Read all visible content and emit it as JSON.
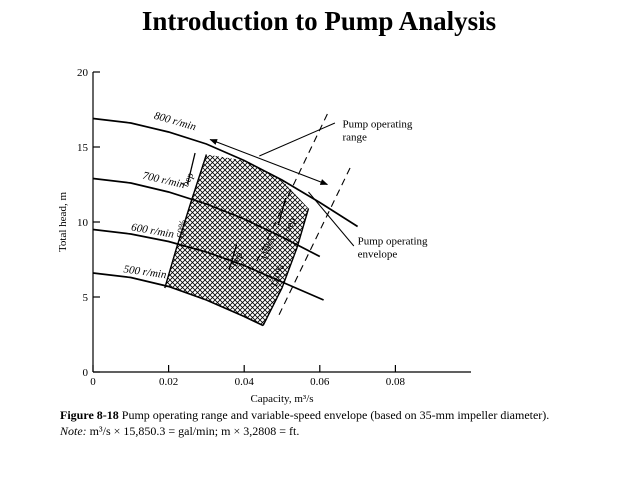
{
  "page": {
    "title": "Introduction to Pump Analysis"
  },
  "chart_data": {
    "type": "line",
    "xlabel": "Capacity, m³/s",
    "ylabel": "Total head, m",
    "xlim": [
      0,
      0.1
    ],
    "ylim": [
      0,
      20
    ],
    "x_ticks": [
      0,
      0.02,
      0.04,
      0.06,
      0.08
    ],
    "x_tick_labels": [
      "0",
      "0.02",
      "0.04",
      "0.06",
      "0.08"
    ],
    "y_ticks": [
      0,
      5,
      10,
      15,
      20
    ],
    "y_tick_labels": [
      "0",
      "5",
      "10",
      "15",
      "20"
    ],
    "grid": false,
    "series": [
      {
        "name": "800 r/min",
        "x": [
          0,
          0.01,
          0.02,
          0.03,
          0.04,
          0.05,
          0.06,
          0.07
        ],
        "y": [
          16.9,
          16.6,
          16.0,
          15.2,
          14.1,
          12.8,
          11.3,
          9.7
        ]
      },
      {
        "name": "700 r/min",
        "x": [
          0,
          0.01,
          0.02,
          0.03,
          0.04,
          0.05,
          0.06
        ],
        "y": [
          12.9,
          12.6,
          12.0,
          11.2,
          10.2,
          9.0,
          7.7
        ]
      },
      {
        "name": "600 r/min",
        "x": [
          0,
          0.01,
          0.02,
          0.03,
          0.04,
          0.05,
          0.061
        ],
        "y": [
          9.5,
          9.2,
          8.7,
          8.0,
          7.1,
          6.0,
          4.8
        ]
      },
      {
        "name": "500 r/min",
        "x": [
          0,
          0.01,
          0.02,
          0.03,
          0.04,
          0.045
        ],
        "y": [
          6.6,
          6.3,
          5.7,
          4.8,
          3.7,
          3.1
        ]
      }
    ],
    "envelope": {
      "label": "Pump operating envelope",
      "hatched": true,
      "left_boundary": {
        "label": "60%",
        "x": [
          0.03,
          0.026,
          0.022,
          0.019
        ],
        "y": [
          14.5,
          11.4,
          8.2,
          5.6
        ]
      },
      "right_boundary": {
        "label": "120%",
        "x": [
          0.057,
          0.054,
          0.05,
          0.045
        ],
        "y": [
          10.9,
          8.3,
          5.6,
          3.1
        ]
      }
    },
    "bep_markers": [
      {
        "label": "bep",
        "x": [
          0.025,
          0.027
        ],
        "y": [
          12.5,
          14.6
        ]
      },
      {
        "label": "bep",
        "x": [
          0.036,
          0.038
        ],
        "y": [
          6.8,
          8.5
        ]
      },
      {
        "label": "bep",
        "x": [
          0.049,
          0.051
        ],
        "y": [
          9.8,
          11.6
        ]
      }
    ],
    "bep_dashed_lines": [
      {
        "x": [
          0.062,
          0.043
        ],
        "y": [
          17.2,
          7.2
        ]
      },
      {
        "x": [
          0.068,
          0.049
        ],
        "y": [
          13.6,
          3.7
        ]
      }
    ],
    "extra_labels": [
      "110%"
    ],
    "annotations": [
      {
        "text": "Pump operating range",
        "type": "double-arrow",
        "x": [
          0.031,
          0.062
        ],
        "y": [
          15.5,
          12.5
        ]
      },
      {
        "text": "Pump operating envelope",
        "type": "leader",
        "x": [
          0.057,
          0.069
        ],
        "y": [
          12.0,
          8.4
        ]
      }
    ]
  },
  "caption": {
    "figure_number": "Figure 8-18",
    "text": "Pump operating range and variable-speed envelope (based on 35-mm impeller diameter).",
    "note_label": "Note:",
    "note_text": "m³/s × 15,850.3 = gal/min; m × 3,2808 = ft."
  }
}
